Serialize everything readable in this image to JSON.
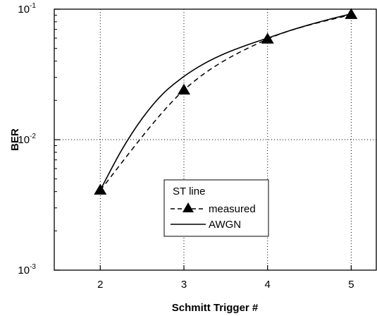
{
  "chart_data": {
    "type": "line",
    "title": "",
    "xlabel": "Schmitt Trigger #",
    "ylabel": "BER",
    "x_ticks": [
      "2",
      "3",
      "4",
      "5"
    ],
    "y_ticks": [
      {
        "base": "10",
        "exp": "-3"
      },
      {
        "base": "10",
        "exp": "-2"
      },
      {
        "base": "10",
        "exp": "-1"
      }
    ],
    "xlim": [
      1.45,
      5.3
    ],
    "ylim": [
      0.001,
      0.1
    ],
    "y_scale": "log",
    "grid": "dotted at major ticks",
    "legend": {
      "title": "ST line",
      "placement": "center-lower",
      "entries": [
        "measured",
        "AWGN"
      ]
    },
    "series": [
      {
        "name": "measured",
        "style": "dashed line with filled triangle markers",
        "x": [
          2,
          3,
          4,
          5
        ],
        "y": [
          0.0041,
          0.024,
          0.059,
          0.091
        ]
      },
      {
        "name": "AWGN",
        "style": "solid line",
        "x": [
          2,
          2.25,
          2.5,
          2.75,
          3,
          3.25,
          3.5,
          3.75,
          4,
          4.25,
          4.5,
          4.75,
          5
        ],
        "y": [
          0.0041,
          0.0082,
          0.0145,
          0.0225,
          0.0305,
          0.0385,
          0.046,
          0.053,
          0.06,
          0.068,
          0.076,
          0.084,
          0.092
        ]
      }
    ]
  }
}
